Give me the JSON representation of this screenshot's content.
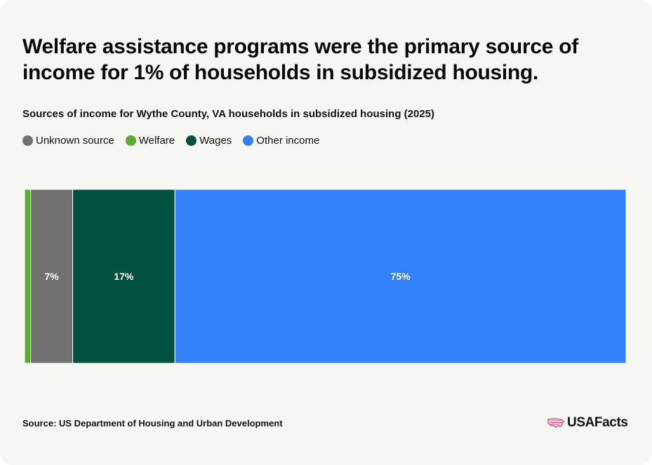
{
  "title": "Welfare assistance programs were the primary source of income for 1% of households in subsidized housing.",
  "source": "Source: US Department of Housing and Urban Development",
  "logo": {
    "text": "USAFacts",
    "icon": "us-map-flag-icon"
  },
  "chart_data": {
    "type": "bar",
    "orientation": "horizontal-stacked",
    "title": "Sources of income for Wythe County, VA households in subsidized housing (2025)",
    "categories": [
      "Wythe County, VA"
    ],
    "legend_placement": "top-left",
    "series": [
      {
        "name": "Welfare",
        "values": [
          1
        ],
        "label": "",
        "color": "#5aac2e"
      },
      {
        "name": "Unknown source",
        "values": [
          7
        ],
        "label": "7%",
        "color": "#717171"
      },
      {
        "name": "Wages",
        "values": [
          17
        ],
        "label": "17%",
        "color": "#00513d"
      },
      {
        "name": "Other income",
        "values": [
          75
        ],
        "label": "75%",
        "color": "#3382fc"
      }
    ],
    "legend": [
      {
        "name": "Unknown source",
        "color": "#717171"
      },
      {
        "name": "Welfare",
        "color": "#5aac2e"
      },
      {
        "name": "Wages",
        "color": "#00513d"
      },
      {
        "name": "Other income",
        "color": "#3382fc"
      }
    ],
    "xlim": [
      0,
      100
    ],
    "grid": false
  }
}
